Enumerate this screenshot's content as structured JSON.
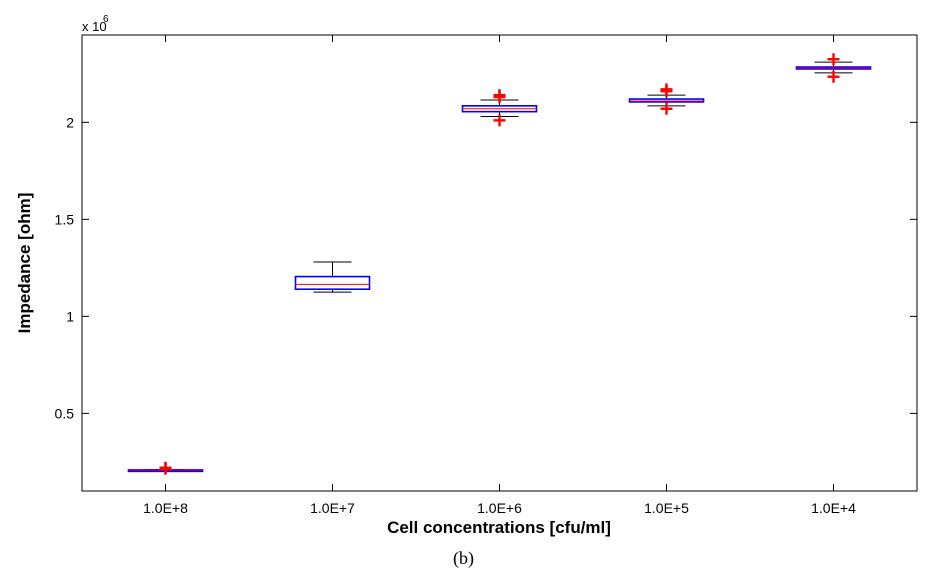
{
  "chart_data": {
    "type": "box",
    "xlabel": "Cell concentrations [cfu/ml]",
    "ylabel": "Impedance [ohm]",
    "y_multiplier_label": "x 10",
    "y_multiplier_exp": "6",
    "ylim": [
      0.1,
      2.45
    ],
    "yticks": [
      0.5,
      1,
      1.5,
      2
    ],
    "ytick_labels": [
      "0.5",
      "1",
      "1.5",
      "2"
    ],
    "grid": false,
    "categories": [
      "1.0E+8",
      "1.0E+7",
      "1.0E+6",
      "1.0E+5",
      "1.0E+4"
    ],
    "boxes": [
      {
        "min": 0.205,
        "q1": 0.207,
        "median": 0.208,
        "q3": 0.209,
        "max": 0.211,
        "outliers": [
          0.22,
          0.215
        ]
      },
      {
        "min": 1.125,
        "q1": 1.14,
        "median": 1.165,
        "q3": 1.205,
        "max": 1.28,
        "outliers": []
      },
      {
        "min": 2.03,
        "q1": 2.055,
        "median": 2.07,
        "q3": 2.085,
        "max": 2.115,
        "outliers": [
          2.01,
          2.13,
          2.14
        ]
      },
      {
        "min": 2.085,
        "q1": 2.105,
        "median": 2.11,
        "q3": 2.12,
        "max": 2.14,
        "outliers": [
          2.07,
          2.16,
          2.17
        ]
      },
      {
        "min": 2.255,
        "q1": 2.275,
        "median": 2.28,
        "q3": 2.285,
        "max": 2.31,
        "outliers": [
          2.235,
          2.325
        ]
      }
    ],
    "colors": {
      "box": "#0000ff",
      "median": "#ff0000",
      "whisker": "#000000",
      "outlier": "#ff0000"
    }
  },
  "caption": "(b)"
}
